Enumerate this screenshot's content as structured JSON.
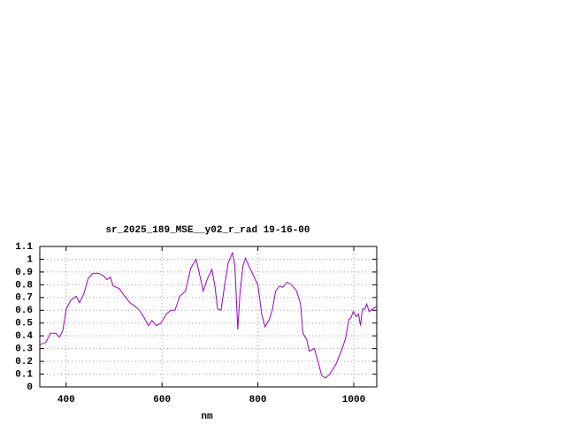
{
  "chart_data": {
    "type": "line",
    "title": "sr_2025_189_MSE__y02_r_rad 19-16-00",
    "x_label": "nm",
    "x": [
      345,
      358,
      367,
      378,
      386,
      393,
      400,
      410,
      421,
      428,
      437,
      446,
      456,
      468,
      478,
      485,
      492,
      498,
      511,
      520,
      533,
      544,
      553,
      563,
      572,
      579,
      588,
      598,
      609,
      618,
      627,
      637,
      649,
      660,
      671,
      679,
      686,
      695,
      704,
      710,
      716,
      723,
      730,
      738,
      747,
      752,
      758,
      763,
      769,
      774,
      782,
      791,
      800,
      808,
      815,
      824,
      830,
      837,
      845,
      852,
      861,
      870,
      881,
      889,
      894,
      902,
      907,
      918,
      926,
      933,
      941,
      950,
      962,
      974,
      983,
      986,
      990,
      994,
      999,
      1005,
      1010,
      1014,
      1018,
      1023,
      1027,
      1032,
      1040,
      1047
    ],
    "values": [
      0.33,
      0.35,
      0.42,
      0.42,
      0.39,
      0.44,
      0.61,
      0.68,
      0.71,
      0.66,
      0.73,
      0.85,
      0.89,
      0.89,
      0.87,
      0.84,
      0.86,
      0.79,
      0.77,
      0.72,
      0.66,
      0.63,
      0.6,
      0.54,
      0.48,
      0.52,
      0.48,
      0.5,
      0.57,
      0.6,
      0.6,
      0.71,
      0.75,
      0.93,
      1.0,
      0.87,
      0.75,
      0.85,
      0.92,
      0.8,
      0.61,
      0.6,
      0.78,
      0.97,
      1.05,
      0.95,
      0.45,
      0.75,
      0.95,
      1.01,
      0.94,
      0.87,
      0.8,
      0.57,
      0.47,
      0.53,
      0.6,
      0.75,
      0.79,
      0.78,
      0.82,
      0.8,
      0.75,
      0.65,
      0.42,
      0.37,
      0.28,
      0.3,
      0.19,
      0.09,
      0.07,
      0.1,
      0.17,
      0.28,
      0.38,
      0.45,
      0.53,
      0.54,
      0.59,
      0.55,
      0.57,
      0.48,
      0.61,
      0.61,
      0.65,
      0.59,
      0.61,
      0.63
    ],
    "color": "#9400d3",
    "xlim": [
      345,
      1048
    ],
    "xticks": [
      400,
      600,
      800,
      1000
    ],
    "ylim": [
      0,
      1.1
    ],
    "yticks": [
      0,
      0.1,
      0.2,
      0.3,
      0.4,
      0.5,
      0.6,
      0.7,
      0.8,
      0.9,
      1,
      1.1
    ],
    "grid": true
  }
}
